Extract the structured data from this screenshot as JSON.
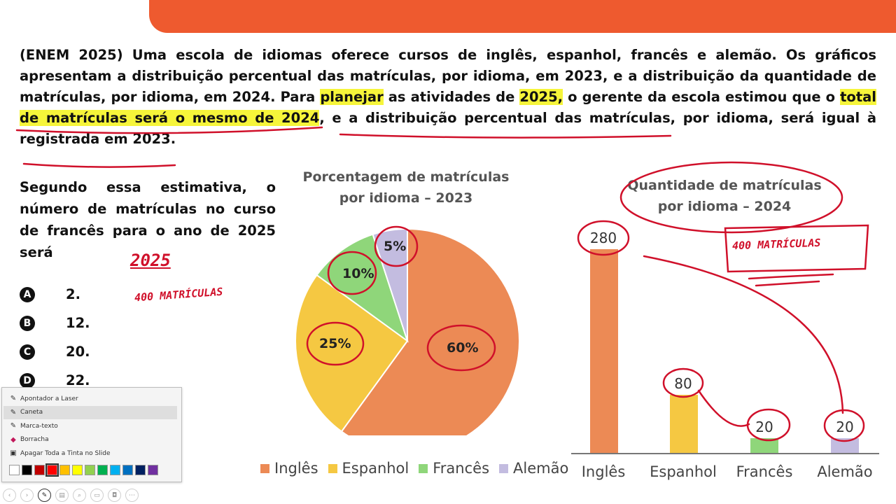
{
  "question": {
    "seg1": "(ENEM 2025) Uma escola de idiomas oferece cursos de inglês, espanhol, francês e alemão. Os gráficos apresentam a distribuição percentual das matrículas, por idioma, em 2023, e a distribuição da quantidade de matrículas, por idioma, em 2024. Para ",
    "seg2": "planejar",
    "seg3": " as atividades de ",
    "seg4": "2025,",
    "seg5": " o gerente da escola estimou que o ",
    "seg6": "total de matrículas será o mesmo de 2024",
    "seg7": ", e a distribuição percentual das matrículas, por idioma, será igual à registrada em 2023."
  },
  "prompt": "Segundo essa estimativa, o número de matrículas no curso de francês para o ano de 2025 será",
  "options": [
    {
      "letter": "A",
      "value": "2."
    },
    {
      "letter": "B",
      "value": "12."
    },
    {
      "letter": "C",
      "value": "20."
    },
    {
      "letter": "D",
      "value": "22."
    }
  ],
  "pie": {
    "title_line1": "Porcentagem de matrículas",
    "title_line2": "por idioma – 2023",
    "labels": [
      "60%",
      "25%",
      "10%",
      "5%"
    ]
  },
  "bar": {
    "title_line1": "Quantidade de matrículas",
    "title_line2": "por idioma – 2024",
    "value_labels": [
      "280",
      "80",
      "20",
      "20"
    ],
    "categories": [
      "Inglês",
      "Espanhol",
      "Francês",
      "Alemão"
    ]
  },
  "legend": [
    "Inglês",
    "Espanhol",
    "Francês",
    "Alemão"
  ],
  "chart_data": [
    {
      "type": "pie",
      "title": "Porcentagem de matrículas por idioma – 2023",
      "categories": [
        "Inglês",
        "Espanhol",
        "Francês",
        "Alemão"
      ],
      "values": [
        60,
        25,
        10,
        5
      ],
      "colors": [
        "#ec8a55",
        "#f5c842",
        "#8fd67a",
        "#c3bce0"
      ],
      "legend": "bottom"
    },
    {
      "type": "bar",
      "title": "Quantidade de matrículas por idioma – 2024",
      "categories": [
        "Inglês",
        "Espanhol",
        "Francês",
        "Alemão"
      ],
      "values": [
        280,
        80,
        20,
        20
      ],
      "colors": [
        "#ec8a55",
        "#f5c842",
        "#8fd67a",
        "#c3bce0"
      ],
      "ylim": [
        0,
        280
      ]
    }
  ],
  "annotations": {
    "year": "2025",
    "matriculas_left": "400 MATRÍCULAS",
    "matriculas_right": "400 MATRÍCULAS"
  },
  "ink_menu": {
    "items": [
      "Apontador a Laser",
      "Caneta",
      "Marca-texto",
      "Borracha",
      "Apagar Toda a Tinta no Slide"
    ],
    "icons": [
      "laser-pointer-icon",
      "pen-icon",
      "highlighter-icon",
      "eraser-icon",
      "erase-all-icon"
    ],
    "active_item": "Caneta",
    "swatches": [
      "#ffffff",
      "#000000",
      "#c00000",
      "#ff0000",
      "#ffc000",
      "#ffff00",
      "#92d050",
      "#00b050",
      "#00b0f0",
      "#0070c0",
      "#002060",
      "#7030a0"
    ]
  },
  "colors": {
    "accent": "#ee5a2f",
    "ink": "#d0102a",
    "highlight": "#f6f53a"
  }
}
